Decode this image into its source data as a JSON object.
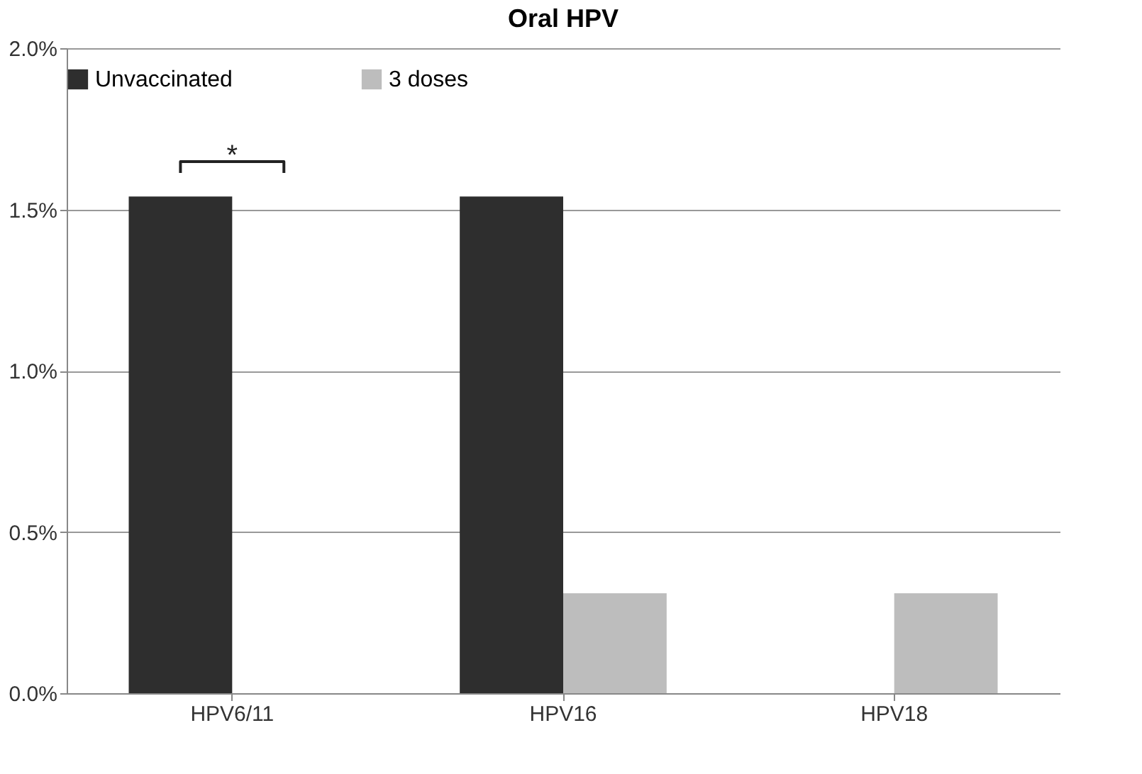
{
  "chart_data": {
    "type": "bar",
    "title": "Oral HPV",
    "categories": [
      "HPV6/11",
      "HPV16",
      "HPV18"
    ],
    "series": [
      {
        "name": "Unvaccinated",
        "color": "#2e2e2e",
        "values": [
          1.54,
          1.54,
          0
        ]
      },
      {
        "name": "3 doses",
        "color": "#bdbdbd",
        "values": [
          0,
          0.31,
          0.31
        ]
      }
    ],
    "ylim": [
      0,
      2
    ],
    "yticks": [
      {
        "value": 0,
        "label": "0.0%"
      },
      {
        "value": 0.5,
        "label": "0.5%"
      },
      {
        "value": 1,
        "label": "1.0%"
      },
      {
        "value": 1.5,
        "label": "1.5%"
      },
      {
        "value": 2,
        "label": "2.0%"
      }
    ],
    "annotations": [
      "*"
    ],
    "grid": "y",
    "legend": "top"
  }
}
